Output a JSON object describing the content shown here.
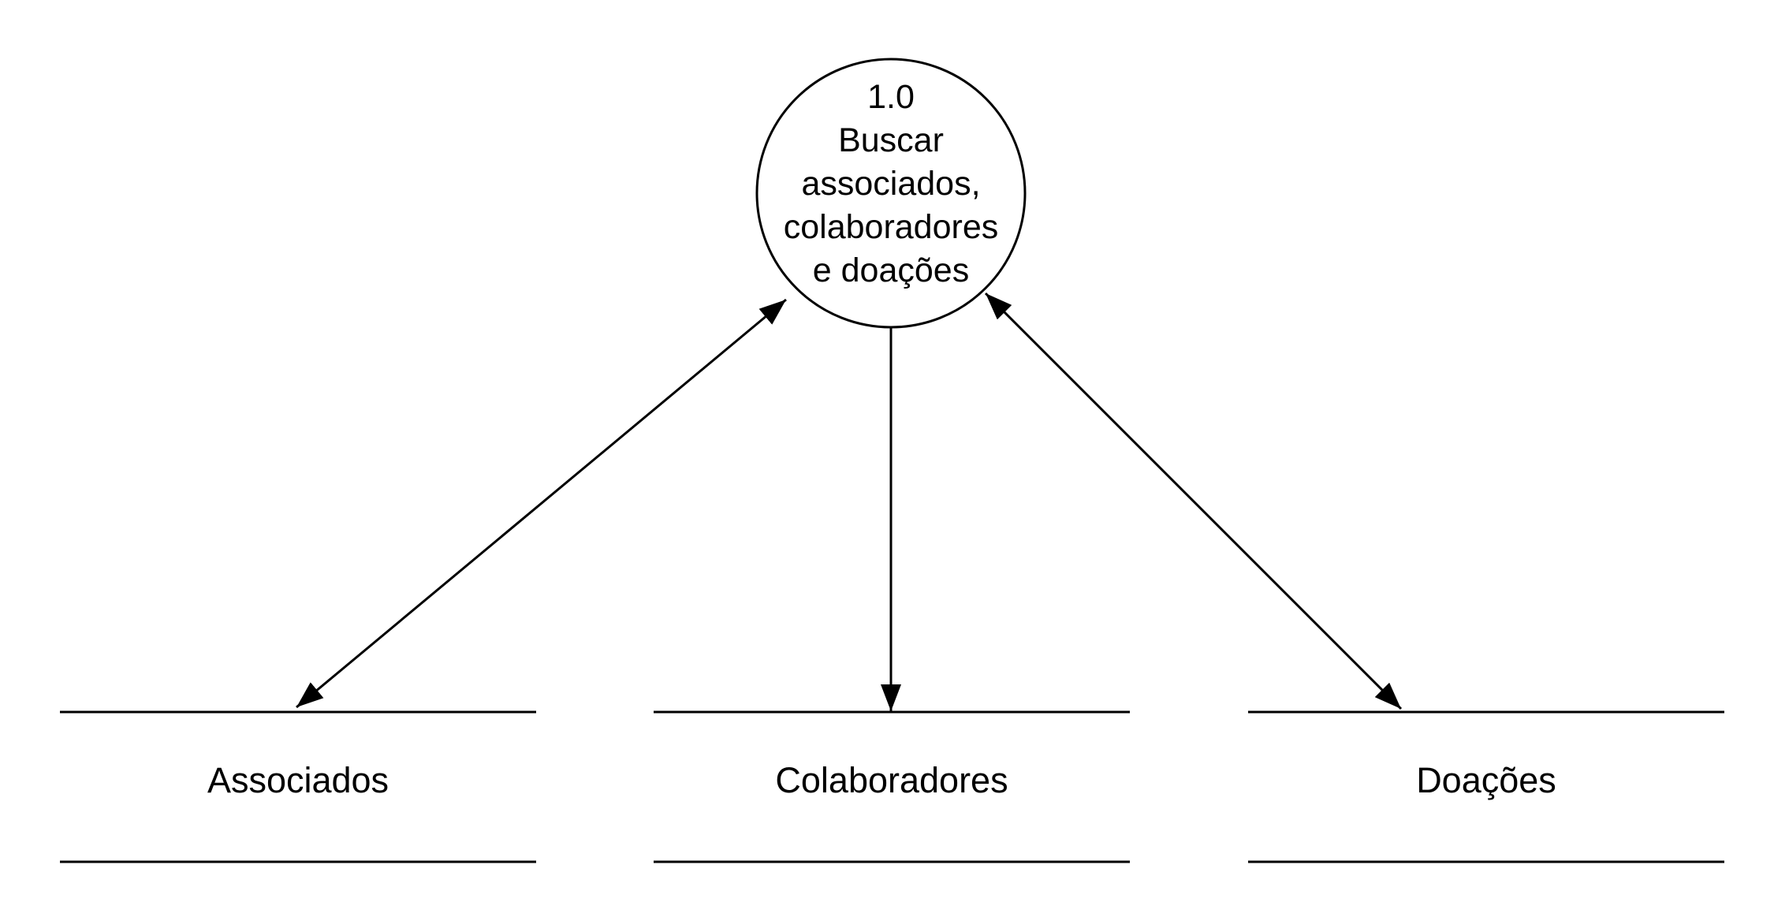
{
  "process": {
    "number": "1.0",
    "label_lines": [
      "Buscar",
      "associados,",
      "colaboradores",
      "e doações"
    ]
  },
  "data_stores": [
    {
      "label": "Associados"
    },
    {
      "label": "Colaboradores"
    },
    {
      "label": "Doações"
    }
  ],
  "flows": [
    {
      "from": "process",
      "to": "Associados",
      "direction": "both"
    },
    {
      "from": "process",
      "to": "Colaboradores",
      "direction": "to-store"
    },
    {
      "from": "process",
      "to": "Doações",
      "direction": "both"
    }
  ],
  "colors": {
    "stroke": "#000000",
    "background": "#ffffff"
  }
}
